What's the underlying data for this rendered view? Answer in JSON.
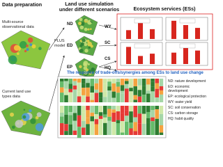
{
  "data_preparation": {
    "title": "Data preparation",
    "observational": [
      "Multi-source",
      "observational data"
    ],
    "plus_model": [
      "PLUS",
      "model"
    ],
    "land_use": [
      "Current land use",
      "types data"
    ]
  },
  "simulation": {
    "title": [
      "Land use simulation",
      "under different scenarios"
    ],
    "scenarios": [
      "ND",
      "ED",
      "EP"
    ]
  },
  "services": {
    "title": "Ecosystem services (ESs)",
    "labels": [
      "WY",
      "SC",
      "CS",
      "HQ"
    ]
  },
  "response": {
    "title": "The response of trade-offs/synergies among ESs to land use change"
  },
  "legend": [
    "ND: nature development",
    "ED: economic",
    "development",
    "EP: ecological protection",
    "WY: water yield",
    "SC: soil conservation",
    "CS: carbon storage",
    "HQ: habit quality"
  ]
}
